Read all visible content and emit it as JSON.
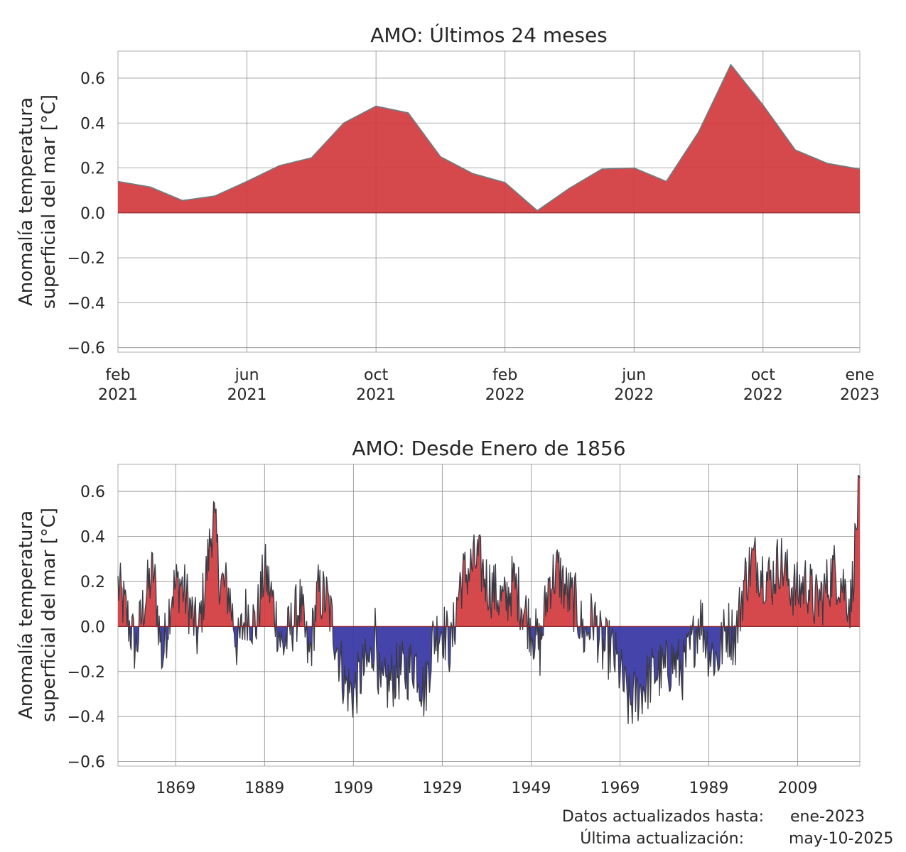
{
  "chart_data": [
    {
      "type": "area",
      "title": "AMO: Últimos 24 meses",
      "ylabel_line1": "Anomalía temperatura",
      "ylabel_line2": "superficial del mar [°C]",
      "ylim": [
        -0.62,
        0.72
      ],
      "yticks": [
        "0.6",
        "0.4",
        "0.2",
        "0.0",
        "−0.2",
        "−0.4",
        "−0.6"
      ],
      "ytick_values": [
        0.6,
        0.4,
        0.2,
        0.0,
        -0.2,
        -0.4,
        -0.6
      ],
      "xticks": [
        {
          "m": "feb",
          "y": "2021",
          "date": "2021-02"
        },
        {
          "m": "jun",
          "y": "2021",
          "date": "2021-06"
        },
        {
          "m": "oct",
          "y": "2021",
          "date": "2021-10"
        },
        {
          "m": "feb",
          "y": "2022",
          "date": "2022-02"
        },
        {
          "m": "jun",
          "y": "2022",
          "date": "2022-06"
        },
        {
          "m": "oct",
          "y": "2022",
          "date": "2022-10"
        },
        {
          "m": "ene",
          "y": "2023",
          "date": "2023-01"
        }
      ],
      "x": [
        "2021-02",
        "2021-03",
        "2021-04",
        "2021-05",
        "2021-06",
        "2021-07",
        "2021-08",
        "2021-09",
        "2021-10",
        "2021-11",
        "2021-12",
        "2022-01",
        "2022-02",
        "2022-03",
        "2022-04",
        "2022-05",
        "2022-06",
        "2022-07",
        "2022-08",
        "2022-09",
        "2022-10",
        "2022-11",
        "2022-12",
        "2023-01"
      ],
      "values": [
        0.14,
        0.115,
        0.055,
        0.075,
        0.14,
        0.21,
        0.245,
        0.4,
        0.475,
        0.445,
        0.25,
        0.175,
        0.135,
        0.01,
        0.11,
        0.195,
        0.2,
        0.14,
        0.36,
        0.66,
        0.48,
        0.28,
        0.22,
        0.195
      ],
      "grid": true,
      "colors": {
        "positive": "#d13a3e",
        "line": "#6f7f82"
      }
    },
    {
      "type": "area",
      "title": "AMO: Desde Enero de 1856",
      "ylabel_line1": "Anomalía temperatura",
      "ylabel_line2": "superficial del mar [°C]",
      "ylim": [
        -0.62,
        0.72
      ],
      "xlim": [
        1856,
        2023
      ],
      "yticks": [
        "0.6",
        "0.4",
        "0.2",
        "0.0",
        "−0.2",
        "−0.4",
        "−0.6"
      ],
      "ytick_values": [
        0.6,
        0.4,
        0.2,
        0.0,
        -0.2,
        -0.4,
        -0.6
      ],
      "xticks": [
        "1869",
        "1889",
        "1909",
        "1929",
        "1949",
        "1969",
        "1989",
        "2009"
      ],
      "xtick_values": [
        1869,
        1889,
        1909,
        1929,
        1949,
        1969,
        1989,
        2009
      ],
      "x": [
        1856.0,
        1858.0,
        1860.0,
        1862.0,
        1864.0,
        1866.0,
        1868.0,
        1870.0,
        1872.0,
        1874.0,
        1876.0,
        1877.5,
        1879.0,
        1881.0,
        1883.0,
        1885.0,
        1887.0,
        1889.0,
        1891.0,
        1893.0,
        1895.0,
        1897.0,
        1899.0,
        1901.0,
        1903.0,
        1905.0,
        1907.0,
        1909.0,
        1911.0,
        1913.0,
        1914.0,
        1915.0,
        1917.0,
        1919.0,
        1921.0,
        1923.0,
        1925.0,
        1927.0,
        1929.0,
        1931.0,
        1933.0,
        1935.0,
        1937.0,
        1939.0,
        1941.0,
        1943.0,
        1945.0,
        1947.0,
        1949.0,
        1951.0,
        1953.0,
        1955.0,
        1957.0,
        1959.0,
        1961.0,
        1963.0,
        1965.0,
        1967.0,
        1969.0,
        1971.0,
        1973.0,
        1975.0,
        1977.0,
        1979.0,
        1981.0,
        1983.0,
        1985.0,
        1987.0,
        1989.0,
        1991.0,
        1993.0,
        1995.0,
        1997.0,
        1999.0,
        2001.0,
        2003.0,
        2005.0,
        2007.0,
        2009.0,
        2011.0,
        2013.0,
        2015.0,
        2017.0,
        2019.0,
        2021.0,
        2023.0
      ],
      "values": [
        0.18,
        0.05,
        -0.1,
        0.12,
        0.25,
        -0.15,
        0.15,
        0.2,
        0.1,
        -0.05,
        0.25,
        0.5,
        0.2,
        0.15,
        -0.1,
        0.08,
        0.0,
        0.25,
        0.1,
        -0.1,
        0.0,
        0.1,
        -0.15,
        0.15,
        0.12,
        -0.05,
        -0.25,
        -0.3,
        -0.2,
        -0.15,
        0.0,
        -0.3,
        -0.25,
        -0.2,
        -0.2,
        -0.15,
        -0.3,
        -0.05,
        0.0,
        -0.1,
        0.2,
        0.25,
        0.3,
        0.2,
        0.15,
        0.1,
        0.2,
        0.1,
        0.0,
        -0.1,
        0.2,
        0.25,
        0.15,
        0.1,
        -0.05,
        0.05,
        -0.1,
        -0.1,
        -0.2,
        -0.35,
        -0.3,
        -0.25,
        -0.2,
        -0.2,
        -0.15,
        -0.2,
        -0.1,
        0.05,
        -0.1,
        -0.15,
        0.0,
        -0.05,
        0.2,
        0.3,
        0.25,
        0.2,
        0.3,
        0.2,
        0.15,
        0.2,
        0.1,
        0.15,
        0.25,
        0.2,
        0.1,
        0.66
      ],
      "grid": true,
      "colors": {
        "positive": "#d13a3e",
        "negative": "#3a3aa5",
        "line": "#3a3a44"
      }
    }
  ],
  "footer": {
    "label1": "Datos actualizados hasta:",
    "value1": "ene-2023",
    "label2": "Última actualización:",
    "value2": "may-10-2025"
  }
}
